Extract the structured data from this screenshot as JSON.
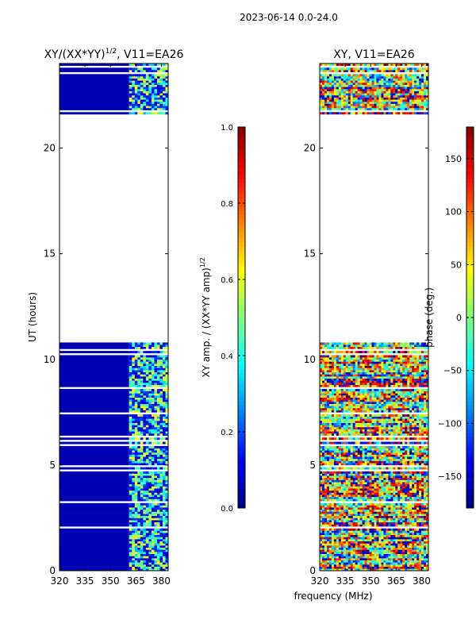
{
  "suptitle": "2023-06-14 0.0-24.0",
  "shared_xlabel": "frequency (MHz)",
  "colors": {
    "background": "#ffffff",
    "axis": "#000000"
  },
  "colormap": "jet",
  "chart_data": [
    {
      "type": "heatmap",
      "title_main": "XY/(XX*YY)",
      "title_exp": "1/2",
      "title_tail": ", V11=EA26",
      "ylabel": "UT (hours)",
      "xlim": [
        320,
        384
      ],
      "ylim": [
        0,
        24
      ],
      "xticks": [
        320,
        335,
        350,
        365,
        380
      ],
      "yticks": [
        0,
        5,
        10,
        15,
        20
      ],
      "data_ranges_hours": [
        [
          0,
          10.75
        ],
        [
          21.6,
          24
        ]
      ],
      "value_range": [
        0,
        1
      ],
      "dominant_value": 0.05,
      "high_value_freq_band_mhz": [
        361,
        384
      ],
      "colorbar": {
        "label_main": "XY amp. / (XX*YY amp)",
        "label_exp": "1/2",
        "range": [
          0,
          1
        ],
        "ticks": [
          "0.0",
          "0.2",
          "0.4",
          "0.6",
          "0.8",
          "1.0"
        ]
      }
    },
    {
      "type": "heatmap",
      "title_main": "XY, V11=EA26",
      "xlim": [
        320,
        384
      ],
      "ylim": [
        0,
        24
      ],
      "xticks": [
        320,
        335,
        350,
        365,
        380
      ],
      "yticks": [
        0,
        5,
        10,
        15,
        20
      ],
      "data_ranges_hours": [
        [
          0,
          10.75
        ],
        [
          21.6,
          24
        ]
      ],
      "value_range": [
        -180,
        180
      ],
      "colorbar": {
        "label_main": "phase (deg.)",
        "range": [
          -180,
          180
        ],
        "ticks": [
          "−150",
          "−100",
          "−50",
          "0",
          "50",
          "100",
          "150"
        ]
      }
    }
  ]
}
